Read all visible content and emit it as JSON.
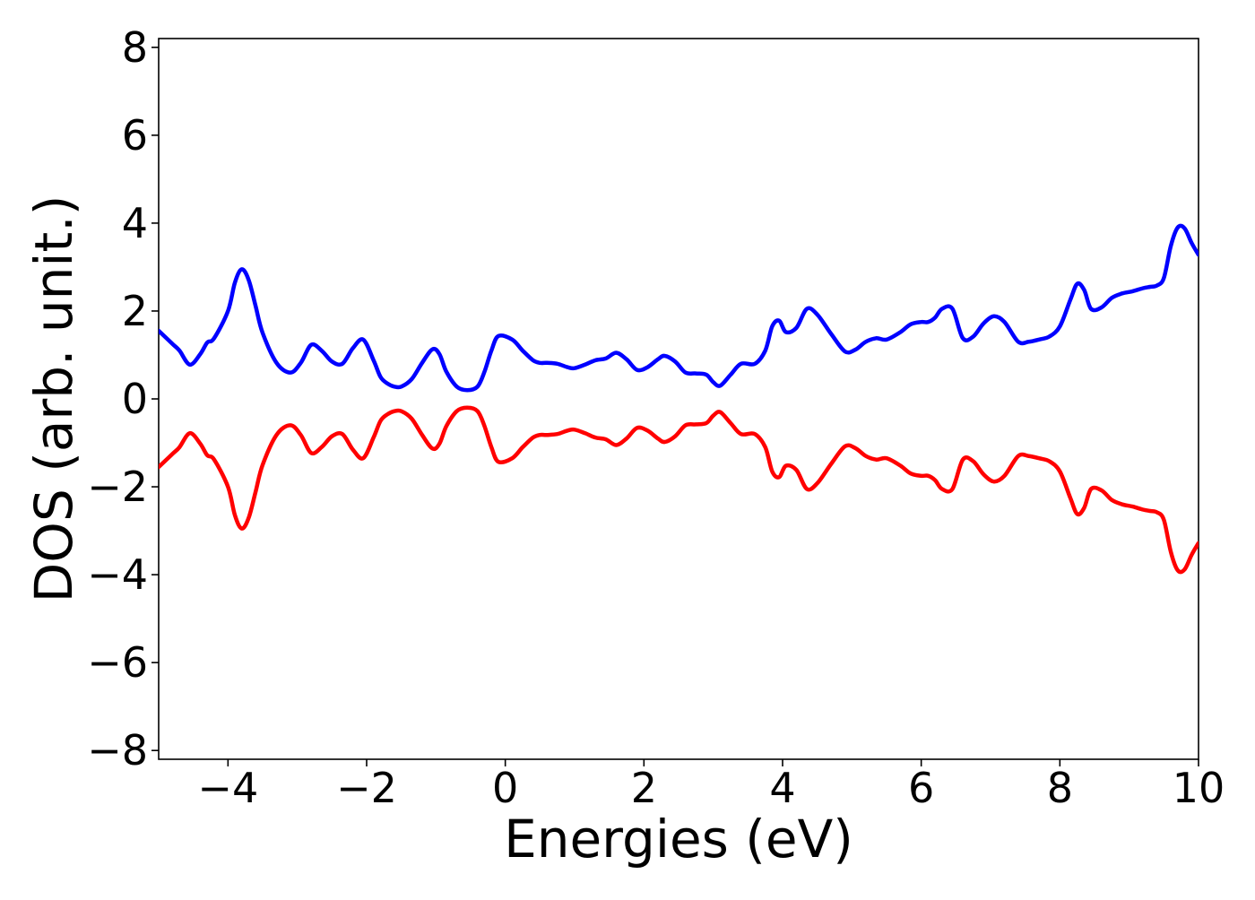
{
  "chart_data": {
    "type": "line",
    "xlabel": "Energies (eV)",
    "ylabel": "DOS (arb. unit.)",
    "xlim": [
      -5,
      10
    ],
    "ylim": [
      -8.2,
      8.2
    ],
    "xticks": [
      -4,
      -2,
      0,
      2,
      4,
      6,
      8,
      10
    ],
    "yticks": [
      -8,
      -6,
      -4,
      -2,
      0,
      2,
      4,
      6,
      8
    ],
    "grid": false,
    "legend": "none",
    "series": [
      {
        "color": "#0000ff",
        "x": [
          -5.0,
          -4.8,
          -4.7,
          -4.55,
          -4.4,
          -4.3,
          -4.2,
          -4.0,
          -3.9,
          -3.8,
          -3.7,
          -3.6,
          -3.5,
          -3.3,
          -3.1,
          -2.95,
          -2.8,
          -2.65,
          -2.5,
          -2.35,
          -2.2,
          -2.05,
          -1.9,
          -1.8,
          -1.7,
          -1.6,
          -1.5,
          -1.35,
          -1.2,
          -1.05,
          -0.95,
          -0.85,
          -0.7,
          -0.55,
          -0.4,
          -0.3,
          -0.2,
          -0.1,
          0.1,
          0.25,
          0.4,
          0.5,
          0.6,
          0.75,
          0.9,
          1.0,
          1.15,
          1.3,
          1.45,
          1.6,
          1.75,
          1.9,
          2.05,
          2.2,
          2.3,
          2.45,
          2.6,
          2.75,
          2.9,
          3.0,
          3.1,
          3.25,
          3.4,
          3.6,
          3.75,
          3.85,
          3.95,
          4.05,
          4.2,
          4.35,
          4.5,
          4.7,
          4.9,
          5.05,
          5.2,
          5.35,
          5.5,
          5.7,
          5.85,
          6.0,
          6.1,
          6.2,
          6.3,
          6.45,
          6.6,
          6.75,
          6.9,
          7.05,
          7.2,
          7.4,
          7.55,
          7.7,
          7.85,
          8.0,
          8.15,
          8.25,
          8.35,
          8.45,
          8.6,
          8.75,
          8.9,
          9.05,
          9.2,
          9.3,
          9.4,
          9.5,
          9.6,
          9.7,
          9.8,
          9.9,
          10.0
        ],
        "y": [
          1.55,
          1.25,
          1.1,
          0.78,
          1.02,
          1.28,
          1.38,
          2.0,
          2.65,
          2.95,
          2.7,
          2.1,
          1.5,
          0.82,
          0.6,
          0.82,
          1.23,
          1.1,
          0.85,
          0.8,
          1.15,
          1.35,
          0.88,
          0.5,
          0.35,
          0.28,
          0.28,
          0.45,
          0.82,
          1.13,
          1.02,
          0.62,
          0.28,
          0.2,
          0.28,
          0.62,
          1.1,
          1.43,
          1.35,
          1.1,
          0.88,
          0.82,
          0.82,
          0.8,
          0.72,
          0.7,
          0.78,
          0.88,
          0.92,
          1.05,
          0.9,
          0.66,
          0.72,
          0.9,
          0.98,
          0.85,
          0.6,
          0.58,
          0.55,
          0.38,
          0.3,
          0.55,
          0.8,
          0.8,
          1.1,
          1.65,
          1.78,
          1.52,
          1.62,
          2.05,
          1.92,
          1.48,
          1.08,
          1.12,
          1.3,
          1.38,
          1.35,
          1.52,
          1.7,
          1.75,
          1.75,
          1.85,
          2.05,
          2.05,
          1.38,
          1.42,
          1.72,
          1.88,
          1.75,
          1.3,
          1.3,
          1.35,
          1.42,
          1.65,
          2.25,
          2.62,
          2.48,
          2.05,
          2.08,
          2.3,
          2.4,
          2.45,
          2.52,
          2.55,
          2.58,
          2.75,
          3.48,
          3.9,
          3.88,
          3.55,
          3.28
        ]
      },
      {
        "color": "#ff0000",
        "x": [
          -5.0,
          -4.8,
          -4.7,
          -4.55,
          -4.4,
          -4.3,
          -4.2,
          -4.0,
          -3.9,
          -3.8,
          -3.7,
          -3.6,
          -3.5,
          -3.3,
          -3.1,
          -2.95,
          -2.8,
          -2.65,
          -2.5,
          -2.35,
          -2.2,
          -2.05,
          -1.9,
          -1.8,
          -1.7,
          -1.6,
          -1.5,
          -1.35,
          -1.2,
          -1.05,
          -0.95,
          -0.85,
          -0.7,
          -0.55,
          -0.4,
          -0.3,
          -0.2,
          -0.1,
          0.1,
          0.25,
          0.4,
          0.5,
          0.6,
          0.75,
          0.9,
          1.0,
          1.15,
          1.3,
          1.45,
          1.6,
          1.75,
          1.9,
          2.05,
          2.2,
          2.3,
          2.45,
          2.6,
          2.75,
          2.9,
          3.0,
          3.1,
          3.25,
          3.4,
          3.6,
          3.75,
          3.85,
          3.95,
          4.05,
          4.2,
          4.35,
          4.5,
          4.7,
          4.9,
          5.05,
          5.2,
          5.35,
          5.5,
          5.7,
          5.85,
          6.0,
          6.1,
          6.2,
          6.3,
          6.45,
          6.6,
          6.75,
          6.9,
          7.05,
          7.2,
          7.4,
          7.55,
          7.7,
          7.85,
          8.0,
          8.15,
          8.25,
          8.35,
          8.45,
          8.6,
          8.75,
          8.9,
          9.05,
          9.2,
          9.3,
          9.4,
          9.5,
          9.6,
          9.7,
          9.8,
          9.9,
          10.0
        ],
        "y": [
          -1.55,
          -1.25,
          -1.1,
          -0.78,
          -1.02,
          -1.28,
          -1.38,
          -2.0,
          -2.65,
          -2.95,
          -2.7,
          -2.1,
          -1.5,
          -0.82,
          -0.6,
          -0.82,
          -1.23,
          -1.1,
          -0.85,
          -0.8,
          -1.15,
          -1.35,
          -0.88,
          -0.5,
          -0.35,
          -0.28,
          -0.28,
          -0.45,
          -0.82,
          -1.13,
          -1.02,
          -0.62,
          -0.28,
          -0.2,
          -0.28,
          -0.62,
          -1.1,
          -1.43,
          -1.35,
          -1.1,
          -0.88,
          -0.82,
          -0.82,
          -0.8,
          -0.72,
          -0.7,
          -0.78,
          -0.88,
          -0.92,
          -1.05,
          -0.9,
          -0.66,
          -0.72,
          -0.9,
          -0.98,
          -0.85,
          -0.6,
          -0.58,
          -0.55,
          -0.38,
          -0.3,
          -0.55,
          -0.8,
          -0.8,
          -1.1,
          -1.65,
          -1.78,
          -1.52,
          -1.62,
          -2.05,
          -1.92,
          -1.48,
          -1.08,
          -1.12,
          -1.3,
          -1.38,
          -1.35,
          -1.52,
          -1.7,
          -1.75,
          -1.75,
          -1.85,
          -2.05,
          -2.05,
          -1.38,
          -1.42,
          -1.72,
          -1.88,
          -1.75,
          -1.3,
          -1.3,
          -1.35,
          -1.42,
          -1.65,
          -2.25,
          -2.62,
          -2.48,
          -2.05,
          -2.08,
          -2.3,
          -2.4,
          -2.45,
          -2.52,
          -2.55,
          -2.58,
          -2.75,
          -3.48,
          -3.9,
          -3.88,
          -3.55,
          -3.28
        ]
      }
    ]
  }
}
